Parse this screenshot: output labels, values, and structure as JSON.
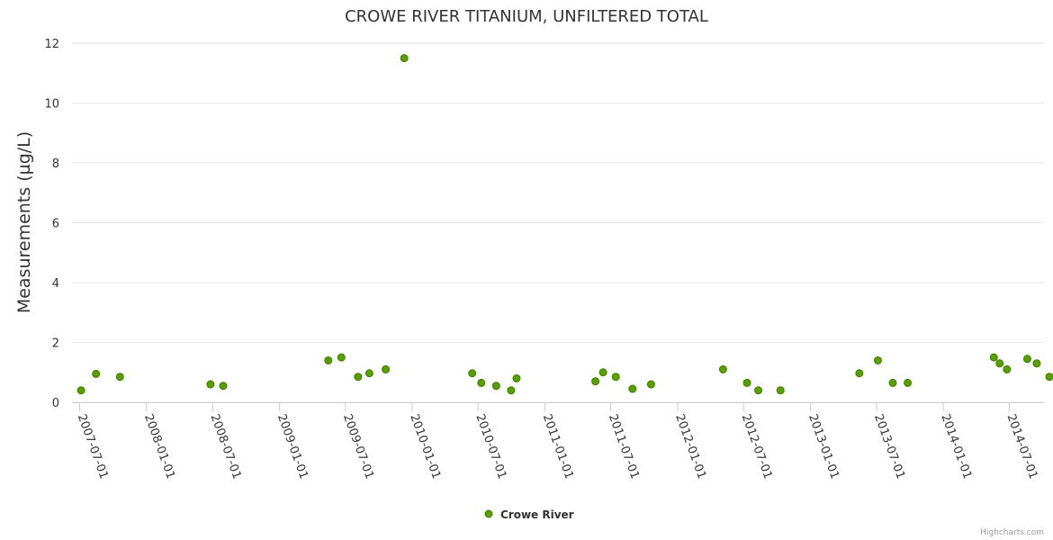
{
  "credits": "Highcharts.com",
  "colors": {
    "marker_fill": "#5a9e00",
    "marker_stroke": "#3f7a00",
    "grid": "#e6e6e6",
    "axis": "#cccccc",
    "text": "#333333"
  },
  "chart_data": {
    "type": "scatter",
    "title": "CROWE RIVER TITANIUM, UNFILTERED TOTAL",
    "xlabel": "",
    "ylabel": "Measurements (µg/L)",
    "ylim": [
      0,
      12
    ],
    "yticks": [
      "0",
      "2",
      "4",
      "6",
      "8",
      "10",
      "12"
    ],
    "xrange": [
      "2007-06-10",
      "2014-10-05"
    ],
    "xticks": [
      "2007-07-01",
      "2008-01-01",
      "2008-07-01",
      "2009-01-01",
      "2009-07-01",
      "2010-01-01",
      "2010-07-01",
      "2011-01-01",
      "2011-07-01",
      "2012-01-01",
      "2012-07-01",
      "2013-01-01",
      "2013-07-01",
      "2014-01-01",
      "2014-07-01"
    ],
    "legend": "bottom-center",
    "series": [
      {
        "name": "Crowe River",
        "points": [
          {
            "x": "2007-07-05",
            "y": 0.4
          },
          {
            "x": "2007-08-15",
            "y": 0.95
          },
          {
            "x": "2007-10-20",
            "y": 0.85
          },
          {
            "x": "2008-06-25",
            "y": 0.6
          },
          {
            "x": "2008-07-30",
            "y": 0.55
          },
          {
            "x": "2009-05-15",
            "y": 1.4
          },
          {
            "x": "2009-06-20",
            "y": 1.5
          },
          {
            "x": "2009-08-05",
            "y": 0.85
          },
          {
            "x": "2009-09-05",
            "y": 0.97
          },
          {
            "x": "2009-10-20",
            "y": 1.1
          },
          {
            "x": "2009-12-10",
            "y": 11.5
          },
          {
            "x": "2010-06-15",
            "y": 0.97
          },
          {
            "x": "2010-07-10",
            "y": 0.65
          },
          {
            "x": "2010-08-20",
            "y": 0.55
          },
          {
            "x": "2010-09-30",
            "y": 0.4
          },
          {
            "x": "2010-10-15",
            "y": 0.8
          },
          {
            "x": "2011-05-20",
            "y": 0.7
          },
          {
            "x": "2011-06-10",
            "y": 1.0
          },
          {
            "x": "2011-07-15",
            "y": 0.85
          },
          {
            "x": "2011-08-30",
            "y": 0.45
          },
          {
            "x": "2011-10-20",
            "y": 0.6
          },
          {
            "x": "2012-05-05",
            "y": 1.1
          },
          {
            "x": "2012-07-10",
            "y": 0.65
          },
          {
            "x": "2012-08-10",
            "y": 0.4
          },
          {
            "x": "2012-10-10",
            "y": 0.4
          },
          {
            "x": "2013-05-15",
            "y": 0.97
          },
          {
            "x": "2013-07-05",
            "y": 1.4
          },
          {
            "x": "2013-08-15",
            "y": 0.65
          },
          {
            "x": "2013-09-25",
            "y": 0.65
          },
          {
            "x": "2014-05-20",
            "y": 1.5
          },
          {
            "x": "2014-06-05",
            "y": 1.3
          },
          {
            "x": "2014-06-25",
            "y": 1.1
          },
          {
            "x": "2014-08-20",
            "y": 1.45
          },
          {
            "x": "2014-09-15",
            "y": 1.3
          },
          {
            "x": "2014-10-20",
            "y": 0.85
          }
        ]
      }
    ]
  }
}
